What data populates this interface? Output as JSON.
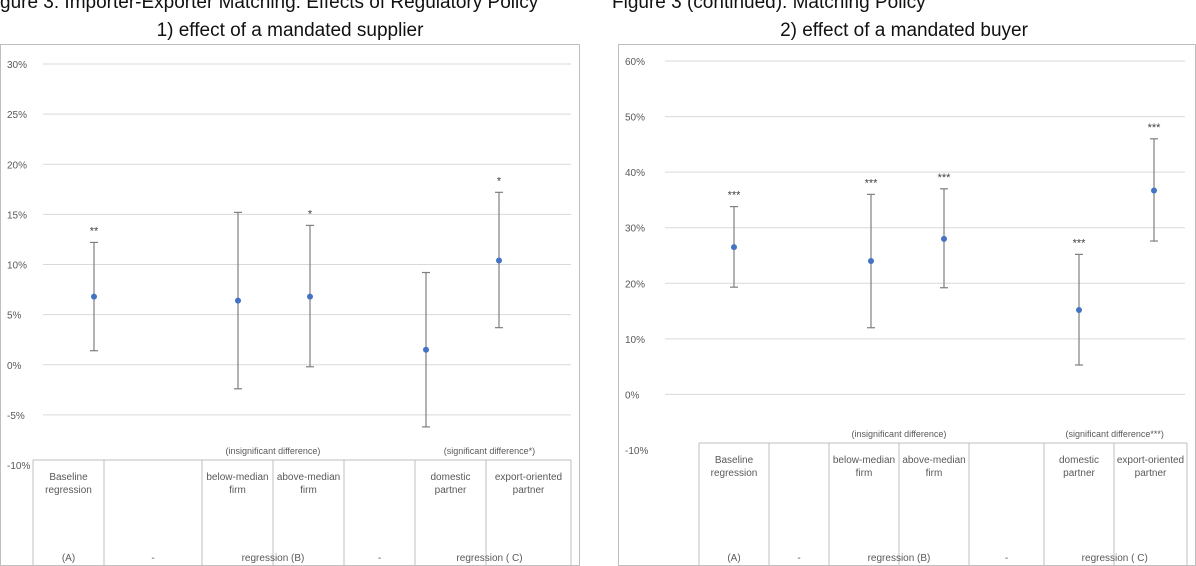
{
  "page": {
    "title_left_fragment": "gure 3: Importer-Exporter Matching: Effects of Regulatory Policy",
    "title_right_fragment": "Figure 3 (continued): Matching Policy"
  },
  "chart_data": [
    {
      "type": "scatter",
      "subtitle": "1) effect of a mandated supplier",
      "ylim": [
        -10,
        30
      ],
      "yticks": [
        "30%",
        "25%",
        "20%",
        "15%",
        "10%",
        "5%",
        "0%",
        "-5%",
        "-10%"
      ],
      "ytick_values": [
        30,
        25,
        20,
        15,
        10,
        5,
        0,
        -5,
        -10
      ],
      "grid": true,
      "points": [
        {
          "label": "Baseline regression",
          "y": 6.8,
          "lo": 1.4,
          "hi": 12.2,
          "sig": "**"
        },
        {
          "label": "below-median firm",
          "y": 6.4,
          "lo": -2.4,
          "hi": 15.2,
          "sig": ""
        },
        {
          "label": "above-median firm",
          "y": 6.8,
          "lo": -0.2,
          "hi": 13.9,
          "sig": "*"
        },
        {
          "label": "domestic partner",
          "y": 1.5,
          "lo": -6.2,
          "hi": 9.2,
          "sig": ""
        },
        {
          "label": "export-oriented partner",
          "y": 10.4,
          "lo": 3.7,
          "hi": 17.2,
          "sig": "*"
        }
      ],
      "group_notes": [
        "(insignificant difference)",
        "(significant difference*)"
      ],
      "table": {
        "columns": [
          "Baseline regression",
          "-",
          "below-median firm",
          "above-median firm",
          "-",
          "domestic partner",
          "export-oriented partner"
        ],
        "groups": [
          "(A)",
          "-",
          "regression (B)",
          "-",
          "regression ( C)"
        ]
      }
    },
    {
      "type": "scatter",
      "subtitle": "2) effect of a mandated buyer",
      "ylim": [
        -10,
        60
      ],
      "yticks": [
        "60%",
        "50%",
        "40%",
        "30%",
        "20%",
        "10%",
        "0%",
        "-10%"
      ],
      "ytick_values": [
        60,
        50,
        40,
        30,
        20,
        10,
        0,
        -10
      ],
      "grid": true,
      "points": [
        {
          "label": "Baseline regression",
          "y": 26.5,
          "lo": 19.3,
          "hi": 33.8,
          "sig": "***"
        },
        {
          "label": "below-median firm",
          "y": 24.0,
          "lo": 12.0,
          "hi": 36.0,
          "sig": "***"
        },
        {
          "label": "above-median firm",
          "y": 28.0,
          "lo": 19.2,
          "hi": 37.0,
          "sig": "***"
        },
        {
          "label": "domestic partner",
          "y": 15.2,
          "lo": 5.3,
          "hi": 25.2,
          "sig": "***"
        },
        {
          "label": "export-oriented partner",
          "y": 36.7,
          "lo": 27.6,
          "hi": 46.0,
          "sig": "***"
        }
      ],
      "group_notes": [
        "(insignificant difference)",
        "(significant difference***)"
      ],
      "table": {
        "columns": [
          "Baseline regression",
          "-",
          "below-median firm",
          "above-median firm",
          "-",
          "domestic partner",
          "export-oriented partner"
        ],
        "groups": [
          "(A)",
          "-",
          "regression (B)",
          "-",
          "regression ( C)"
        ]
      }
    }
  ],
  "colors": {
    "point": "#4472c4",
    "errorbar": "#7f7f7f",
    "grid": "#d9d9d9",
    "axis_text": "#595959"
  }
}
